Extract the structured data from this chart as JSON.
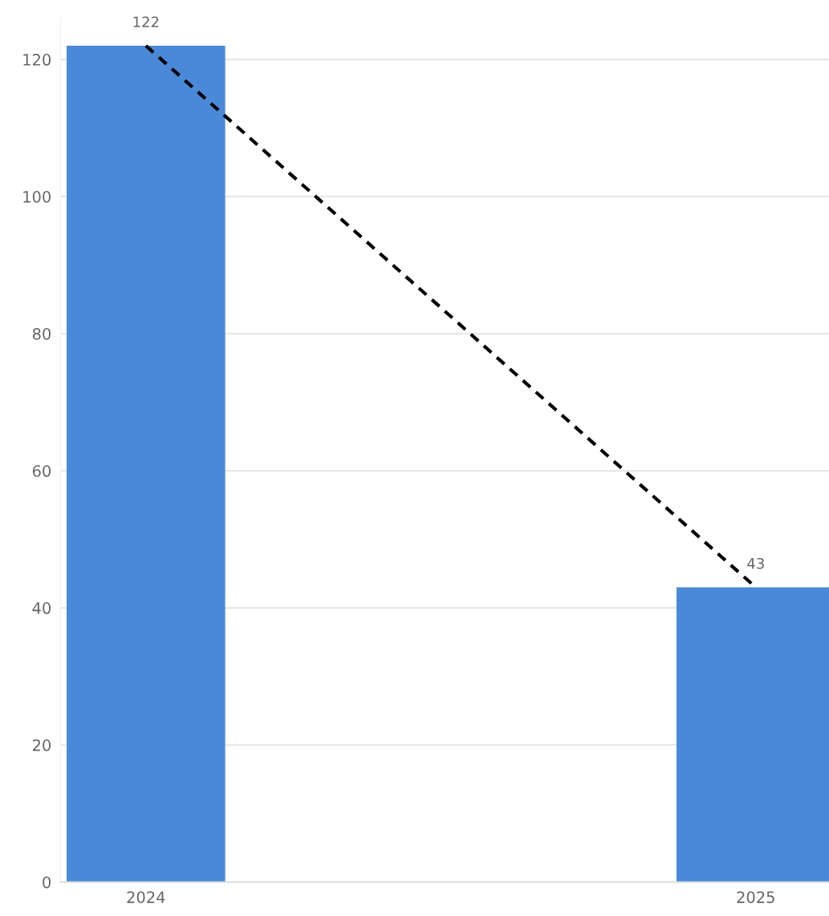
{
  "chart_data": {
    "type": "bar",
    "categories": [
      "2024",
      "2025"
    ],
    "series": [
      {
        "color": "#4a89d8",
        "values": [
          122,
          43
        ],
        "value_labels": [
          "122",
          "43"
        ]
      },
      {
        "type": "line",
        "color": "#000000",
        "values": [
          122,
          43
        ],
        "line_style": "dashed",
        "marker": "none"
      }
    ],
    "ylim": [
      0,
      126
    ],
    "yticks": [
      0,
      20,
      40,
      60,
      80,
      100,
      120
    ],
    "grid": "y",
    "legend": false
  }
}
